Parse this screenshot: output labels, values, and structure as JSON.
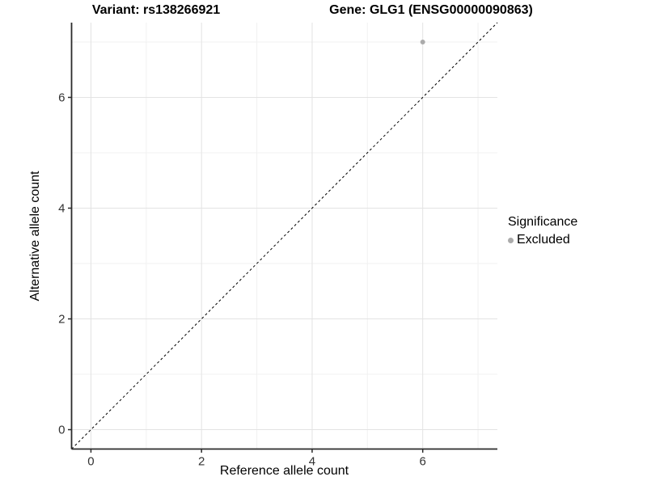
{
  "chart_data": {
    "type": "scatter",
    "titles": {
      "left": "Variant: rs138266921",
      "right": "Gene: GLG1 (ENSG00000090863)"
    },
    "xlabel": "Reference allele count",
    "ylabel": "Alternative allele count",
    "xlim": [
      -0.35,
      7.35
    ],
    "ylim": [
      -0.35,
      7.35
    ],
    "xticks": [
      0,
      2,
      4,
      6
    ],
    "yticks": [
      0,
      2,
      4,
      6
    ],
    "minor_xticks": [
      1,
      3,
      5,
      7
    ],
    "minor_yticks": [
      1,
      3,
      5,
      7
    ],
    "grid": true,
    "points": [
      {
        "x": 6,
        "y": 7,
        "series": "Excluded"
      }
    ],
    "reference_line": {
      "type": "identity",
      "style": "dashed",
      "color": "#000000"
    },
    "legend": {
      "position": "right",
      "title": "Significance",
      "items": [
        {
          "label": "Excluded",
          "color": "#ababab"
        }
      ]
    },
    "colors": {
      "point": "#ababab",
      "major_grid": "#e3e3e3",
      "minor_grid": "#f1f1f1",
      "axis": "#2b2b2b",
      "tick_label": "#333333",
      "background": "#ffffff"
    }
  }
}
